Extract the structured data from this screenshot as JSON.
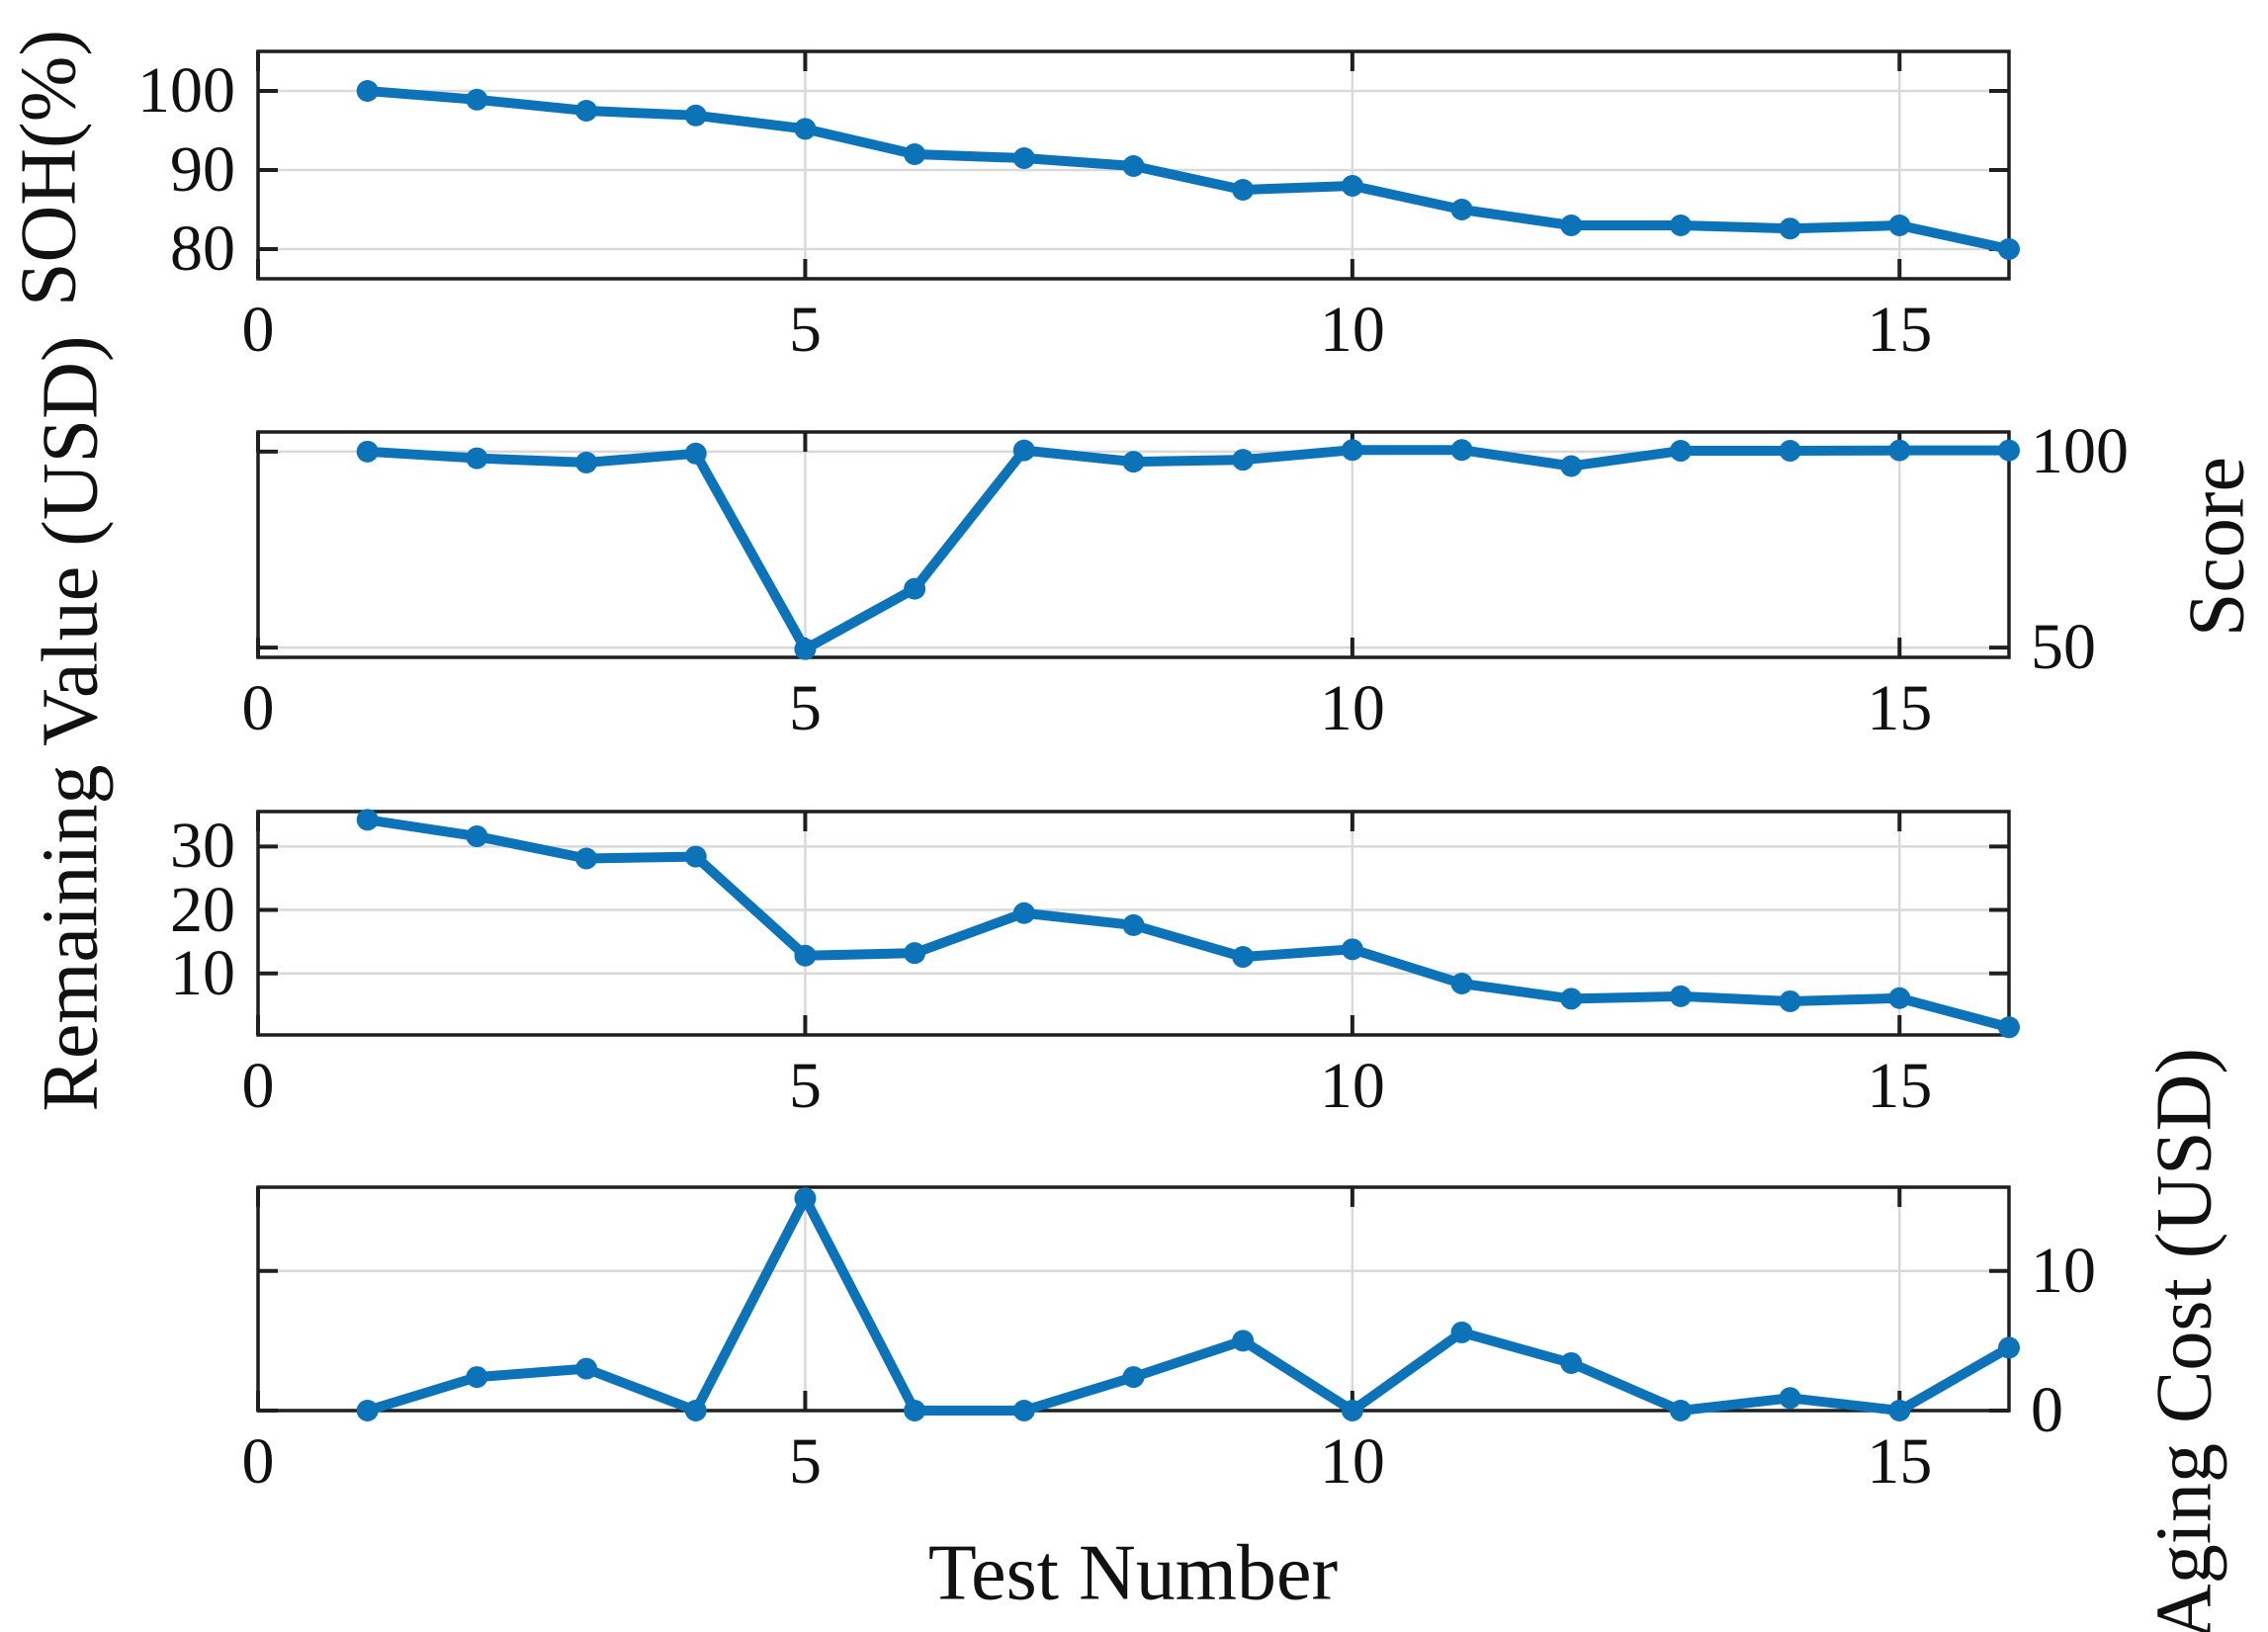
{
  "figure": {
    "xlabel": "Test Number",
    "line_color": "#0d73b9",
    "grid_color": "#d9d9d9",
    "axis_color": "#1f1f1f",
    "background": "#ffffff"
  },
  "chart_data": [
    {
      "type": "line",
      "ylabel": "SOH(%)",
      "ylabel_side": "left",
      "x": [
        1,
        2,
        3,
        4,
        5,
        6,
        7,
        8,
        9,
        10,
        11,
        12,
        13,
        14,
        15,
        16
      ],
      "values": [
        100,
        98.9,
        97.5,
        96.9,
        95.2,
        92.0,
        91.5,
        90.5,
        87.5,
        88.0,
        85.0,
        83.0,
        83.0,
        82.6,
        83.0,
        80.0
      ],
      "xlim": [
        0,
        16
      ],
      "ylim": [
        76.25,
        105
      ],
      "xticks": [
        0,
        5,
        10,
        15
      ],
      "yticks": [
        {
          "v": 100,
          "label": "100"
        },
        {
          "v": 90,
          "label": "90"
        },
        {
          "v": 80,
          "label": "80"
        }
      ],
      "ytick_side": "left",
      "grid": true,
      "marker": "circle"
    },
    {
      "type": "line",
      "ylabel": "Score",
      "ylabel_side": "right",
      "x": [
        1,
        2,
        3,
        4,
        5,
        6,
        7,
        8,
        9,
        10,
        11,
        12,
        13,
        14,
        15,
        16
      ],
      "values": [
        100,
        98.3,
        97.2,
        99.5,
        49.6,
        65.0,
        100.3,
        97.4,
        97.9,
        100.4,
        100.4,
        96.3,
        100.2,
        100.2,
        100.3,
        100.3
      ],
      "xlim": [
        0,
        16
      ],
      "ylim": [
        47.5,
        105
      ],
      "xticks": [
        0,
        5,
        10,
        15
      ],
      "yticks": [
        {
          "v": 100,
          "label": "100"
        },
        {
          "v": 50,
          "label": "50"
        }
      ],
      "ytick_side": "right",
      "grid": true,
      "marker": "circle"
    },
    {
      "type": "line",
      "ylabel": "Remaining Value (USD)",
      "ylabel_side": "left",
      "x": [
        1,
        2,
        3,
        4,
        5,
        6,
        7,
        8,
        9,
        10,
        11,
        12,
        13,
        14,
        15,
        16
      ],
      "values": [
        34.2,
        31.6,
        28.1,
        28.4,
        12.8,
        13.2,
        19.5,
        17.6,
        12.6,
        13.8,
        8.4,
        6.0,
        6.4,
        5.6,
        6.1,
        1.5
      ],
      "xlim": [
        0,
        16
      ],
      "ylim": [
        0.3,
        35.5
      ],
      "xticks": [
        0,
        5,
        10,
        15
      ],
      "yticks": [
        {
          "v": 30,
          "label": "30"
        },
        {
          "v": 20,
          "label": "20"
        },
        {
          "v": 10,
          "label": "10"
        }
      ],
      "ytick_side": "left",
      "grid": true,
      "marker": "circle"
    },
    {
      "type": "line",
      "ylabel": "Aging Cost (USD)",
      "ylabel_side": "right",
      "x": [
        1,
        2,
        3,
        4,
        5,
        6,
        7,
        8,
        9,
        10,
        11,
        12,
        13,
        14,
        15,
        16
      ],
      "values": [
        0,
        2.4,
        3.0,
        0,
        15.2,
        0,
        0,
        2.4,
        5.0,
        0,
        5.6,
        3.4,
        0,
        0.9,
        0,
        4.5
      ],
      "xlim": [
        0,
        16
      ],
      "ylim": [
        0,
        16
      ],
      "xticks": [
        0,
        5,
        10,
        15
      ],
      "yticks": [
        {
          "v": 10,
          "label": "10"
        },
        {
          "v": 0,
          "label": "0"
        }
      ],
      "ytick_side": "right",
      "grid": true,
      "marker": "circle"
    }
  ]
}
